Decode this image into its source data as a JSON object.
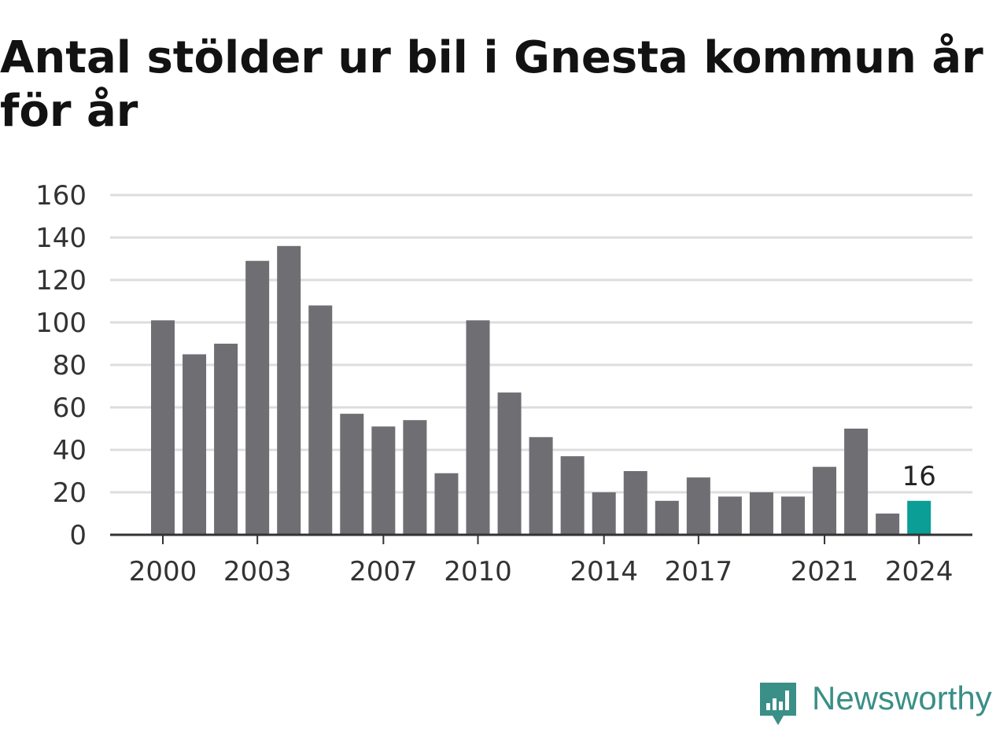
{
  "chart_data": {
    "type": "bar",
    "title": "Antal stölder ur bil i Gnesta kommun år för år",
    "years": [
      2000,
      2001,
      2002,
      2003,
      2004,
      2005,
      2006,
      2007,
      2008,
      2009,
      2010,
      2011,
      2012,
      2013,
      2014,
      2015,
      2016,
      2017,
      2018,
      2019,
      2020,
      2021,
      2022,
      2023,
      2024
    ],
    "values": [
      101,
      85,
      90,
      129,
      136,
      108,
      57,
      51,
      54,
      29,
      101,
      67,
      46,
      37,
      20,
      30,
      16,
      27,
      18,
      20,
      18,
      32,
      50,
      10,
      16
    ],
    "x_tick_labels": [
      "2000",
      "2003",
      "2007",
      "2010",
      "2014",
      "2017",
      "2021",
      "2024"
    ],
    "y_ticks": [
      0,
      20,
      40,
      60,
      80,
      100,
      120,
      140,
      160
    ],
    "ylim": [
      0,
      160
    ],
    "grid": true,
    "highlight": {
      "year": 2024,
      "label": "16",
      "color": "#0a9e96"
    },
    "bar_color": "#6f6e73",
    "xlabel": "",
    "ylabel": ""
  },
  "brand": {
    "name": "Newsworthy",
    "color": "#3a8f87",
    "icon": "newsworthy-logo-icon"
  }
}
